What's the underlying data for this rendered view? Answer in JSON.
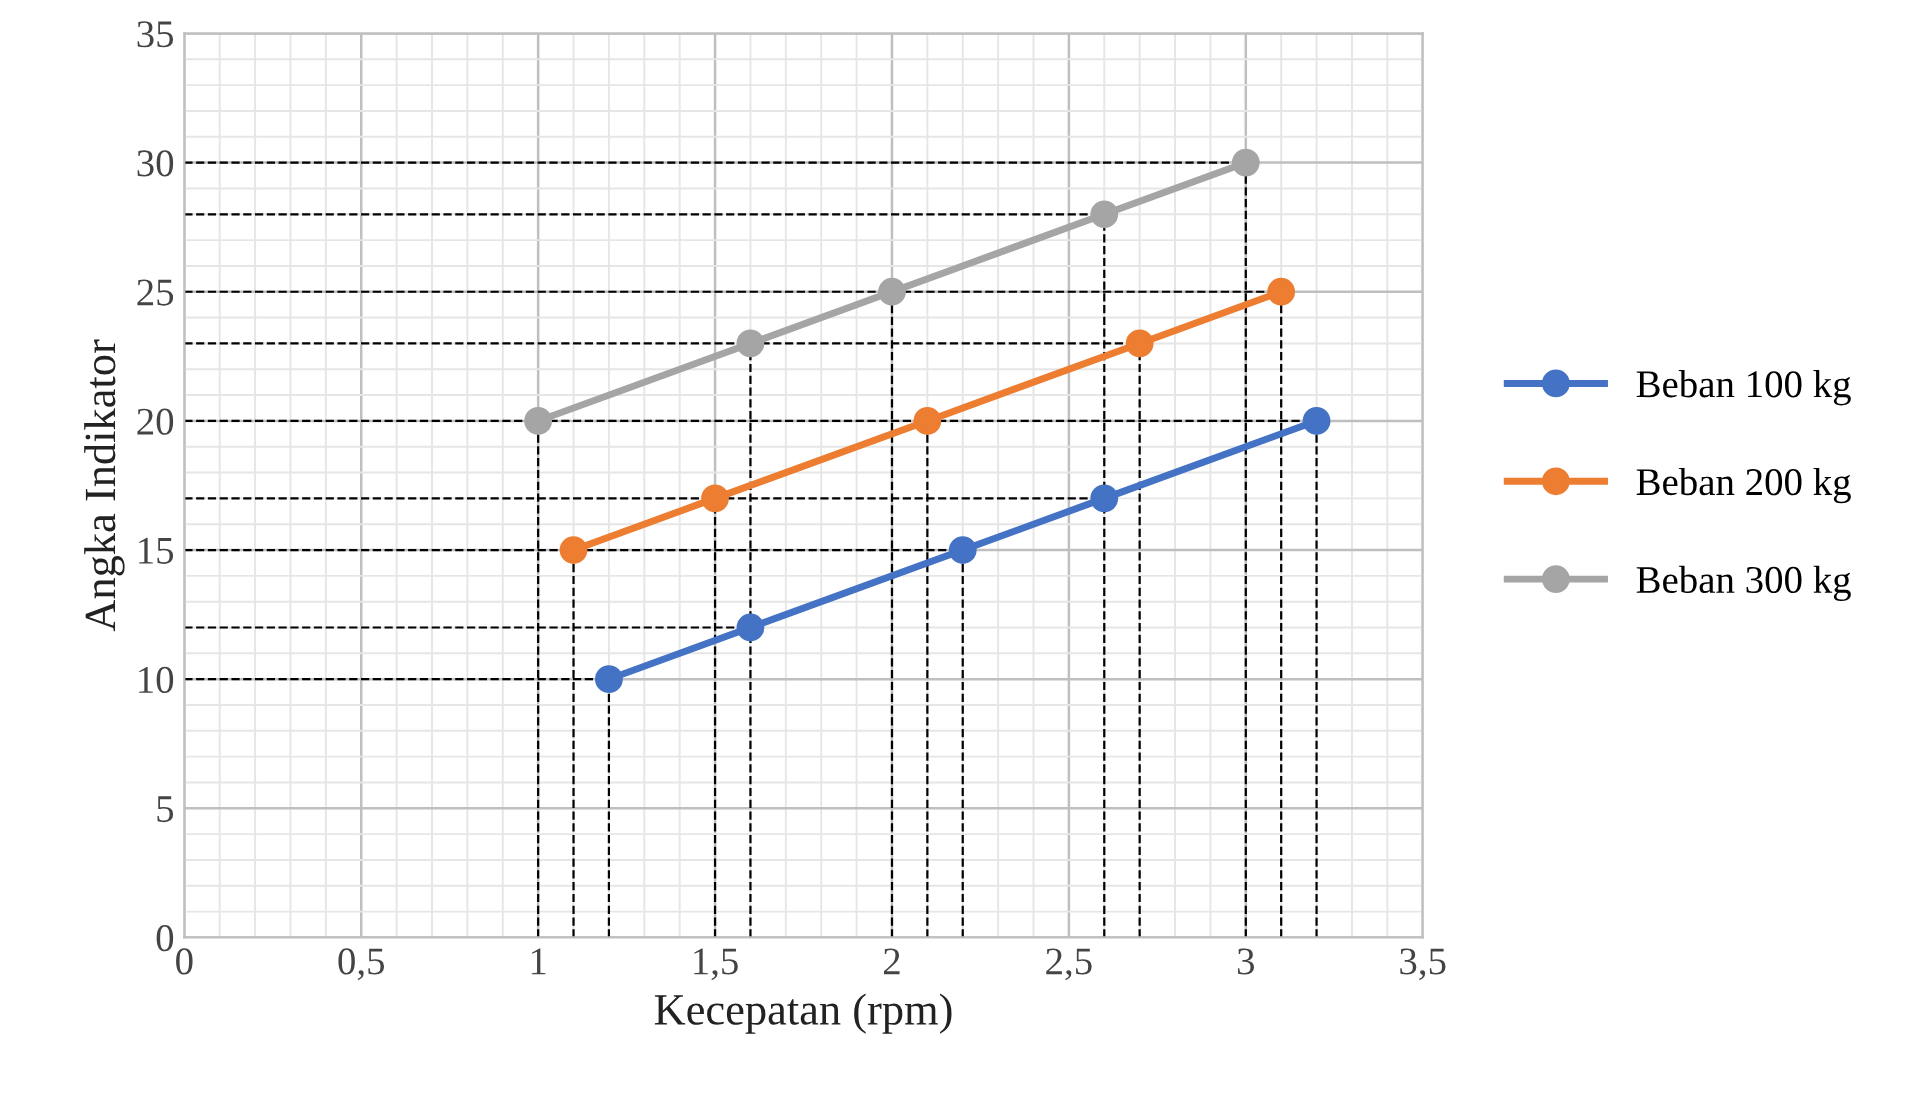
{
  "chart_data": {
    "type": "line",
    "xlabel": "Kecepatan (rpm)",
    "ylabel": "Angka Indikator",
    "xlim": [
      0,
      3.5
    ],
    "xticks": [
      0,
      {
        "value": 0.5,
        "label": "0,5"
      },
      1,
      {
        "value": 1.5,
        "label": "1,5"
      },
      2,
      {
        "value": 2.5,
        "label": "2,5"
      },
      3,
      {
        "value": 3.5,
        "label": "3,5"
      }
    ],
    "ylim": [
      0,
      35
    ],
    "yticks": [
      0,
      5,
      10,
      15,
      20,
      25,
      30,
      35
    ],
    "ref_lines": [
      {
        "axis": "x",
        "value": 1.0,
        "color": "#000000",
        "line_style": "dashed"
      },
      {
        "axis": "x",
        "value": 1.1,
        "color": "#000000",
        "line_style": "dashed"
      },
      {
        "axis": "x",
        "value": 1.2,
        "color": "#000000",
        "line_style": "dashed"
      },
      {
        "axis": "x",
        "value": 1.5,
        "color": "#000000",
        "line_style": "dashed"
      },
      {
        "axis": "x",
        "value": 1.6,
        "color": "#000000",
        "line_style": "dashed"
      },
      {
        "axis": "x",
        "value": 2.0,
        "color": "#000000",
        "line_style": "dashed"
      },
      {
        "axis": "x",
        "value": 2.1,
        "color": "#000000",
        "line_style": "dashed"
      },
      {
        "axis": "x",
        "value": 2.2,
        "color": "#000000",
        "line_style": "dashed"
      },
      {
        "axis": "x",
        "value": 2.6,
        "color": "#000000",
        "line_style": "dashed"
      },
      {
        "axis": "x",
        "value": 2.7,
        "color": "#000000",
        "line_style": "dashed"
      },
      {
        "axis": "x",
        "value": 3.0,
        "color": "#000000",
        "line_style": "dashed"
      },
      {
        "axis": "x",
        "value": 3.1,
        "color": "#000000",
        "line_style": "dashed"
      },
      {
        "axis": "x",
        "value": 3.2,
        "color": "#000000",
        "line_style": "dashed"
      },
      {
        "axis": "y",
        "value": 10,
        "color": "#000000",
        "line_style": "dashed"
      },
      {
        "axis": "y",
        "value": 12,
        "color": "#000000",
        "line_style": "dashed"
      },
      {
        "axis": "y",
        "value": 15,
        "color": "#000000",
        "line_style": "dashed"
      },
      {
        "axis": "y",
        "value": 17,
        "color": "#000000",
        "line_style": "dashed"
      },
      {
        "axis": "y",
        "value": 20,
        "color": "#000000",
        "line_style": "dashed"
      },
      {
        "axis": "y",
        "value": 23,
        "color": "#000000",
        "line_style": "dashed"
      },
      {
        "axis": "y",
        "value": 25,
        "color": "#000000",
        "line_style": "dashed"
      },
      {
        "axis": "y",
        "value": 28,
        "color": "#000000",
        "line_style": "dashed"
      },
      {
        "axis": "y",
        "value": 30,
        "color": "#000000",
        "line_style": "dashed"
      }
    ],
    "grid": true,
    "legend": "right",
    "marker": "circle",
    "line_style": "solid",
    "series": [
      {
        "name": "Beban 100 kg",
        "color": "#4472c4",
        "x": [
          1.2,
          1.6,
          2.2,
          2.6,
          3.2
        ],
        "values": [
          10,
          12,
          15,
          17,
          20
        ]
      },
      {
        "name": "Beban 200 kg",
        "color": "#ed7d31",
        "x": [
          1.1,
          1.5,
          2.1,
          2.7,
          3.1
        ],
        "values": [
          15,
          17,
          20,
          23,
          25
        ]
      },
      {
        "name": "Beban 300 kg",
        "color": "#a5a5a5",
        "x": [
          1.0,
          1.6,
          2.0,
          2.6,
          3.0
        ],
        "values": [
          20,
          23,
          25,
          28,
          30
        ]
      }
    ]
  }
}
